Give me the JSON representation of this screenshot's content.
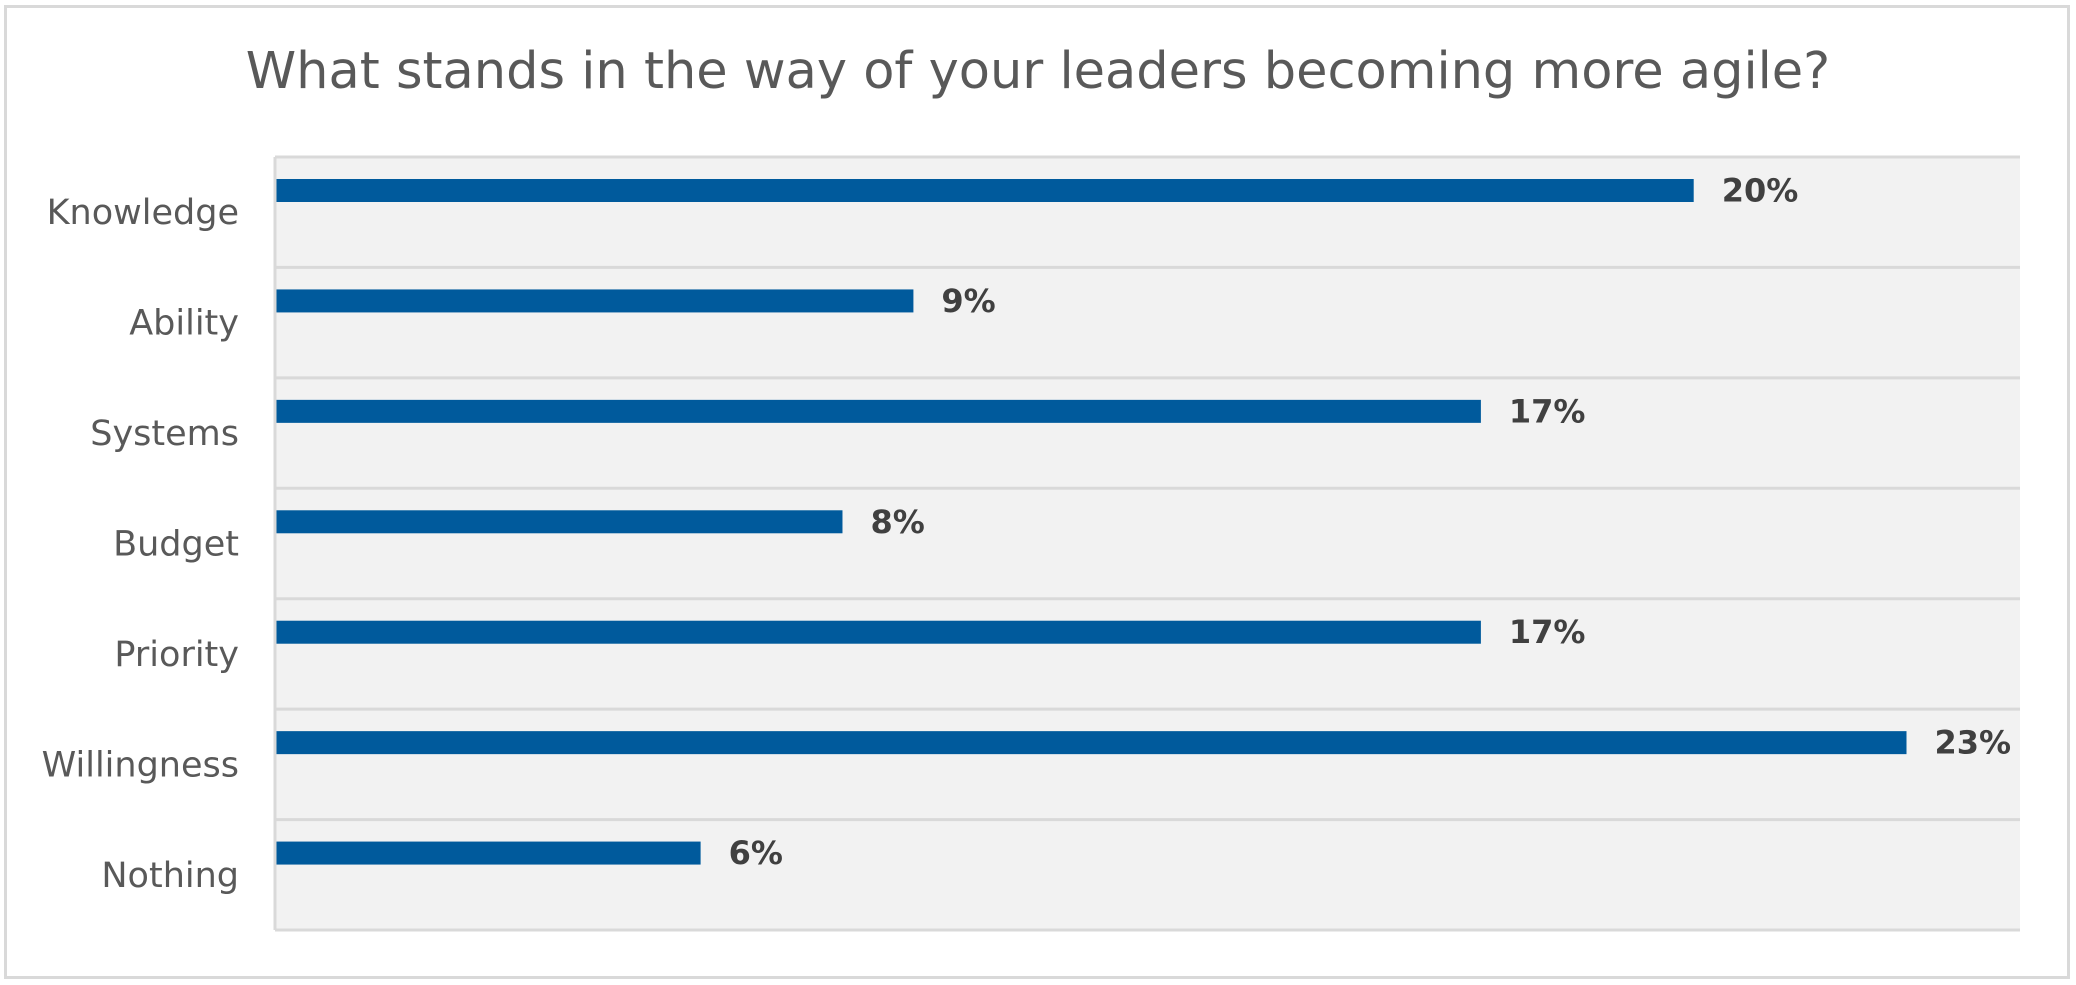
{
  "chart_data": {
    "type": "bar",
    "orientation": "horizontal",
    "title": "What stands in the way of your leaders becoming more agile?",
    "categories": [
      "Knowledge",
      "Ability",
      "Systems",
      "Budget",
      "Priority",
      "Willingness",
      "Nothing"
    ],
    "values": [
      20,
      9,
      17,
      8,
      17,
      23,
      6
    ],
    "data_labels": [
      "20%",
      "9%",
      "17%",
      "8%",
      "17%",
      "23%",
      "6%"
    ],
    "xlim": [
      0,
      24.6
    ],
    "grid": true,
    "legend": "none",
    "colors": {
      "bar": "#005a9c",
      "plot_background": "#f2f2f2",
      "gridline": "#d9d9d9"
    }
  }
}
